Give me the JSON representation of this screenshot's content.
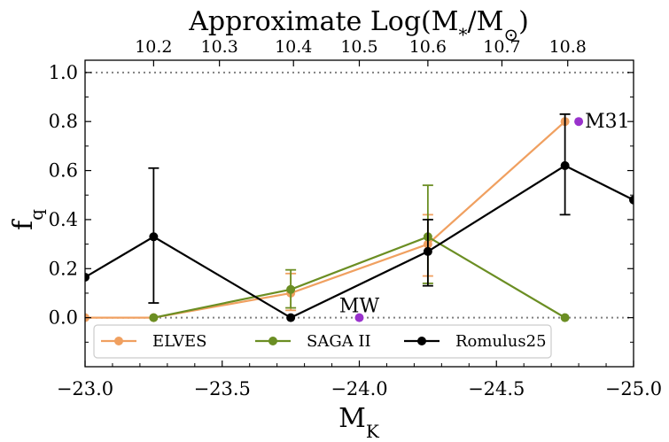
{
  "chart_data": {
    "type": "line",
    "title": "Approximate Log(M*/M⊙)",
    "xlabel": "M_K",
    "ylabel": "f_q",
    "xlim": [
      -23.0,
      -25.0
    ],
    "ylim": [
      -0.2,
      1.05
    ],
    "x_inverted": true,
    "x_ticks": [
      -23.0,
      -23.5,
      -24.0,
      -24.5,
      -25.0
    ],
    "x_tick_labels": [
      "−23.0",
      "−23.5",
      "−24.0",
      "−24.5",
      "−25.0"
    ],
    "y_ticks": [
      0.0,
      0.2,
      0.4,
      0.6,
      0.8,
      1.0
    ],
    "y_tick_labels": [
      "0.0",
      "0.2",
      "0.4",
      "0.6",
      "0.8",
      "1.0"
    ],
    "top_axis": {
      "label": "Approximate Log(M*/M⊙)",
      "ticks": [
        {
          "label": "10.2",
          "mk": -23.25
        },
        {
          "label": "10.3",
          "mk": -23.49
        },
        {
          "label": "10.4",
          "mk": -23.76
        },
        {
          "label": "10.5",
          "mk": -24.0
        },
        {
          "label": "10.6",
          "mk": -24.25
        },
        {
          "label": "10.7",
          "mk": -24.52
        },
        {
          "label": "10.8",
          "mk": -24.76
        }
      ]
    },
    "reference_lines": [
      0.0,
      1.0
    ],
    "grid": false,
    "legend_position": "bottom",
    "series": [
      {
        "name": "ELVES",
        "color": "#f0a060",
        "x": [
          -23.0,
          -23.25,
          -23.75,
          -24.25,
          -24.75
        ],
        "y": [
          0.0,
          0.0,
          0.1,
          0.3,
          0.8
        ],
        "err_low": [
          null,
          null,
          0.07,
          0.13,
          null
        ],
        "err_high": [
          null,
          null,
          0.08,
          0.12,
          null
        ]
      },
      {
        "name": "SAGA II",
        "color": "#6b8e23",
        "x": [
          -23.25,
          -23.75,
          -24.25,
          -24.75
        ],
        "y": [
          0.0,
          0.115,
          0.33,
          0.0
        ],
        "err_low": [
          null,
          0.075,
          0.19,
          null
        ],
        "err_high": [
          null,
          0.08,
          0.21,
          null
        ]
      },
      {
        "name": "Romulus25",
        "color": "#000000",
        "x": [
          -23.0,
          -23.25,
          -23.75,
          -24.25,
          -24.75,
          -25.0
        ],
        "y": [
          0.165,
          0.33,
          0.0,
          0.27,
          0.62,
          0.48
        ],
        "err_low": [
          null,
          0.27,
          null,
          0.14,
          0.2,
          null
        ],
        "err_high": [
          null,
          0.28,
          null,
          0.13,
          0.21,
          null
        ]
      }
    ],
    "annotations": [
      {
        "label": "MW",
        "x": -24.0,
        "y": 0.0,
        "color": "#9932cc"
      },
      {
        "label": "M31",
        "x": -24.8,
        "y": 0.8,
        "color": "#9932cc"
      }
    ]
  }
}
